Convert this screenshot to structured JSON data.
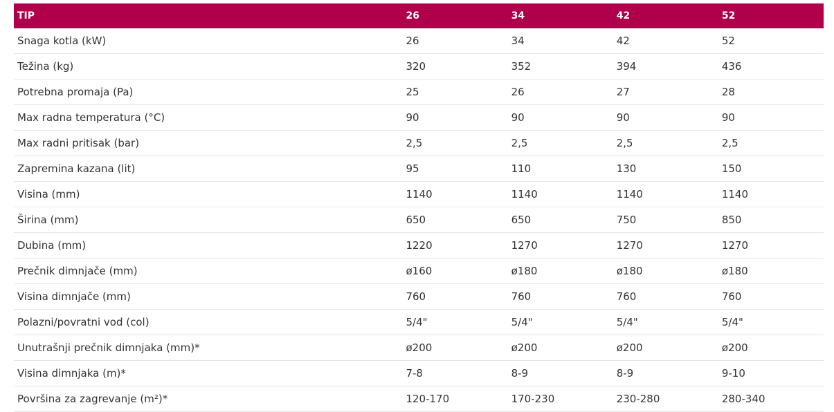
{
  "table": {
    "header": [
      "TIP",
      "26",
      "34",
      "42",
      "52"
    ],
    "rows": [
      [
        "Snaga kotla (kW)",
        "26",
        "34",
        "42",
        "52"
      ],
      [
        "Težina (kg)",
        "320",
        "352",
        "394",
        "436"
      ],
      [
        "Potrebna promaja (Pa)",
        "25",
        "26",
        "27",
        "28"
      ],
      [
        "Max radna temperatura (°C)",
        "90",
        "90",
        "90",
        "90"
      ],
      [
        "Max radni pritisak (bar)",
        "2,5",
        "2,5",
        "2,5",
        "2,5"
      ],
      [
        "Zapremina kazana (lit)",
        "95",
        "110",
        "130",
        "150"
      ],
      [
        "Visina (mm)",
        "1140",
        "1140",
        "1140",
        "1140"
      ],
      [
        "Širina (mm)",
        "650",
        "650",
        "750",
        "850"
      ],
      [
        "Dubina (mm)",
        "1220",
        "1270",
        "1270",
        "1270"
      ],
      [
        "Prečnik dimnjače (mm)",
        "ø160",
        "ø180",
        "ø180",
        "ø180"
      ],
      [
        "Visina dimnjače (mm)",
        "760",
        "760",
        "760",
        "760"
      ],
      [
        "Polazni/povratni vod (col)",
        "5/4\"",
        "5/4\"",
        "5/4\"",
        "5/4\""
      ],
      [
        "Unutrašnji prečnik dimnjaka (mm)*",
        "ø200",
        "ø200",
        "ø200",
        "ø200"
      ],
      [
        "Visina dimnjaka (m)*",
        "7-8",
        "8-9",
        "8-9",
        "9-10"
      ],
      [
        "Površina za zagrevanje (m²)*",
        "120-170",
        "170-230",
        "230-280",
        "280-340"
      ]
    ]
  }
}
